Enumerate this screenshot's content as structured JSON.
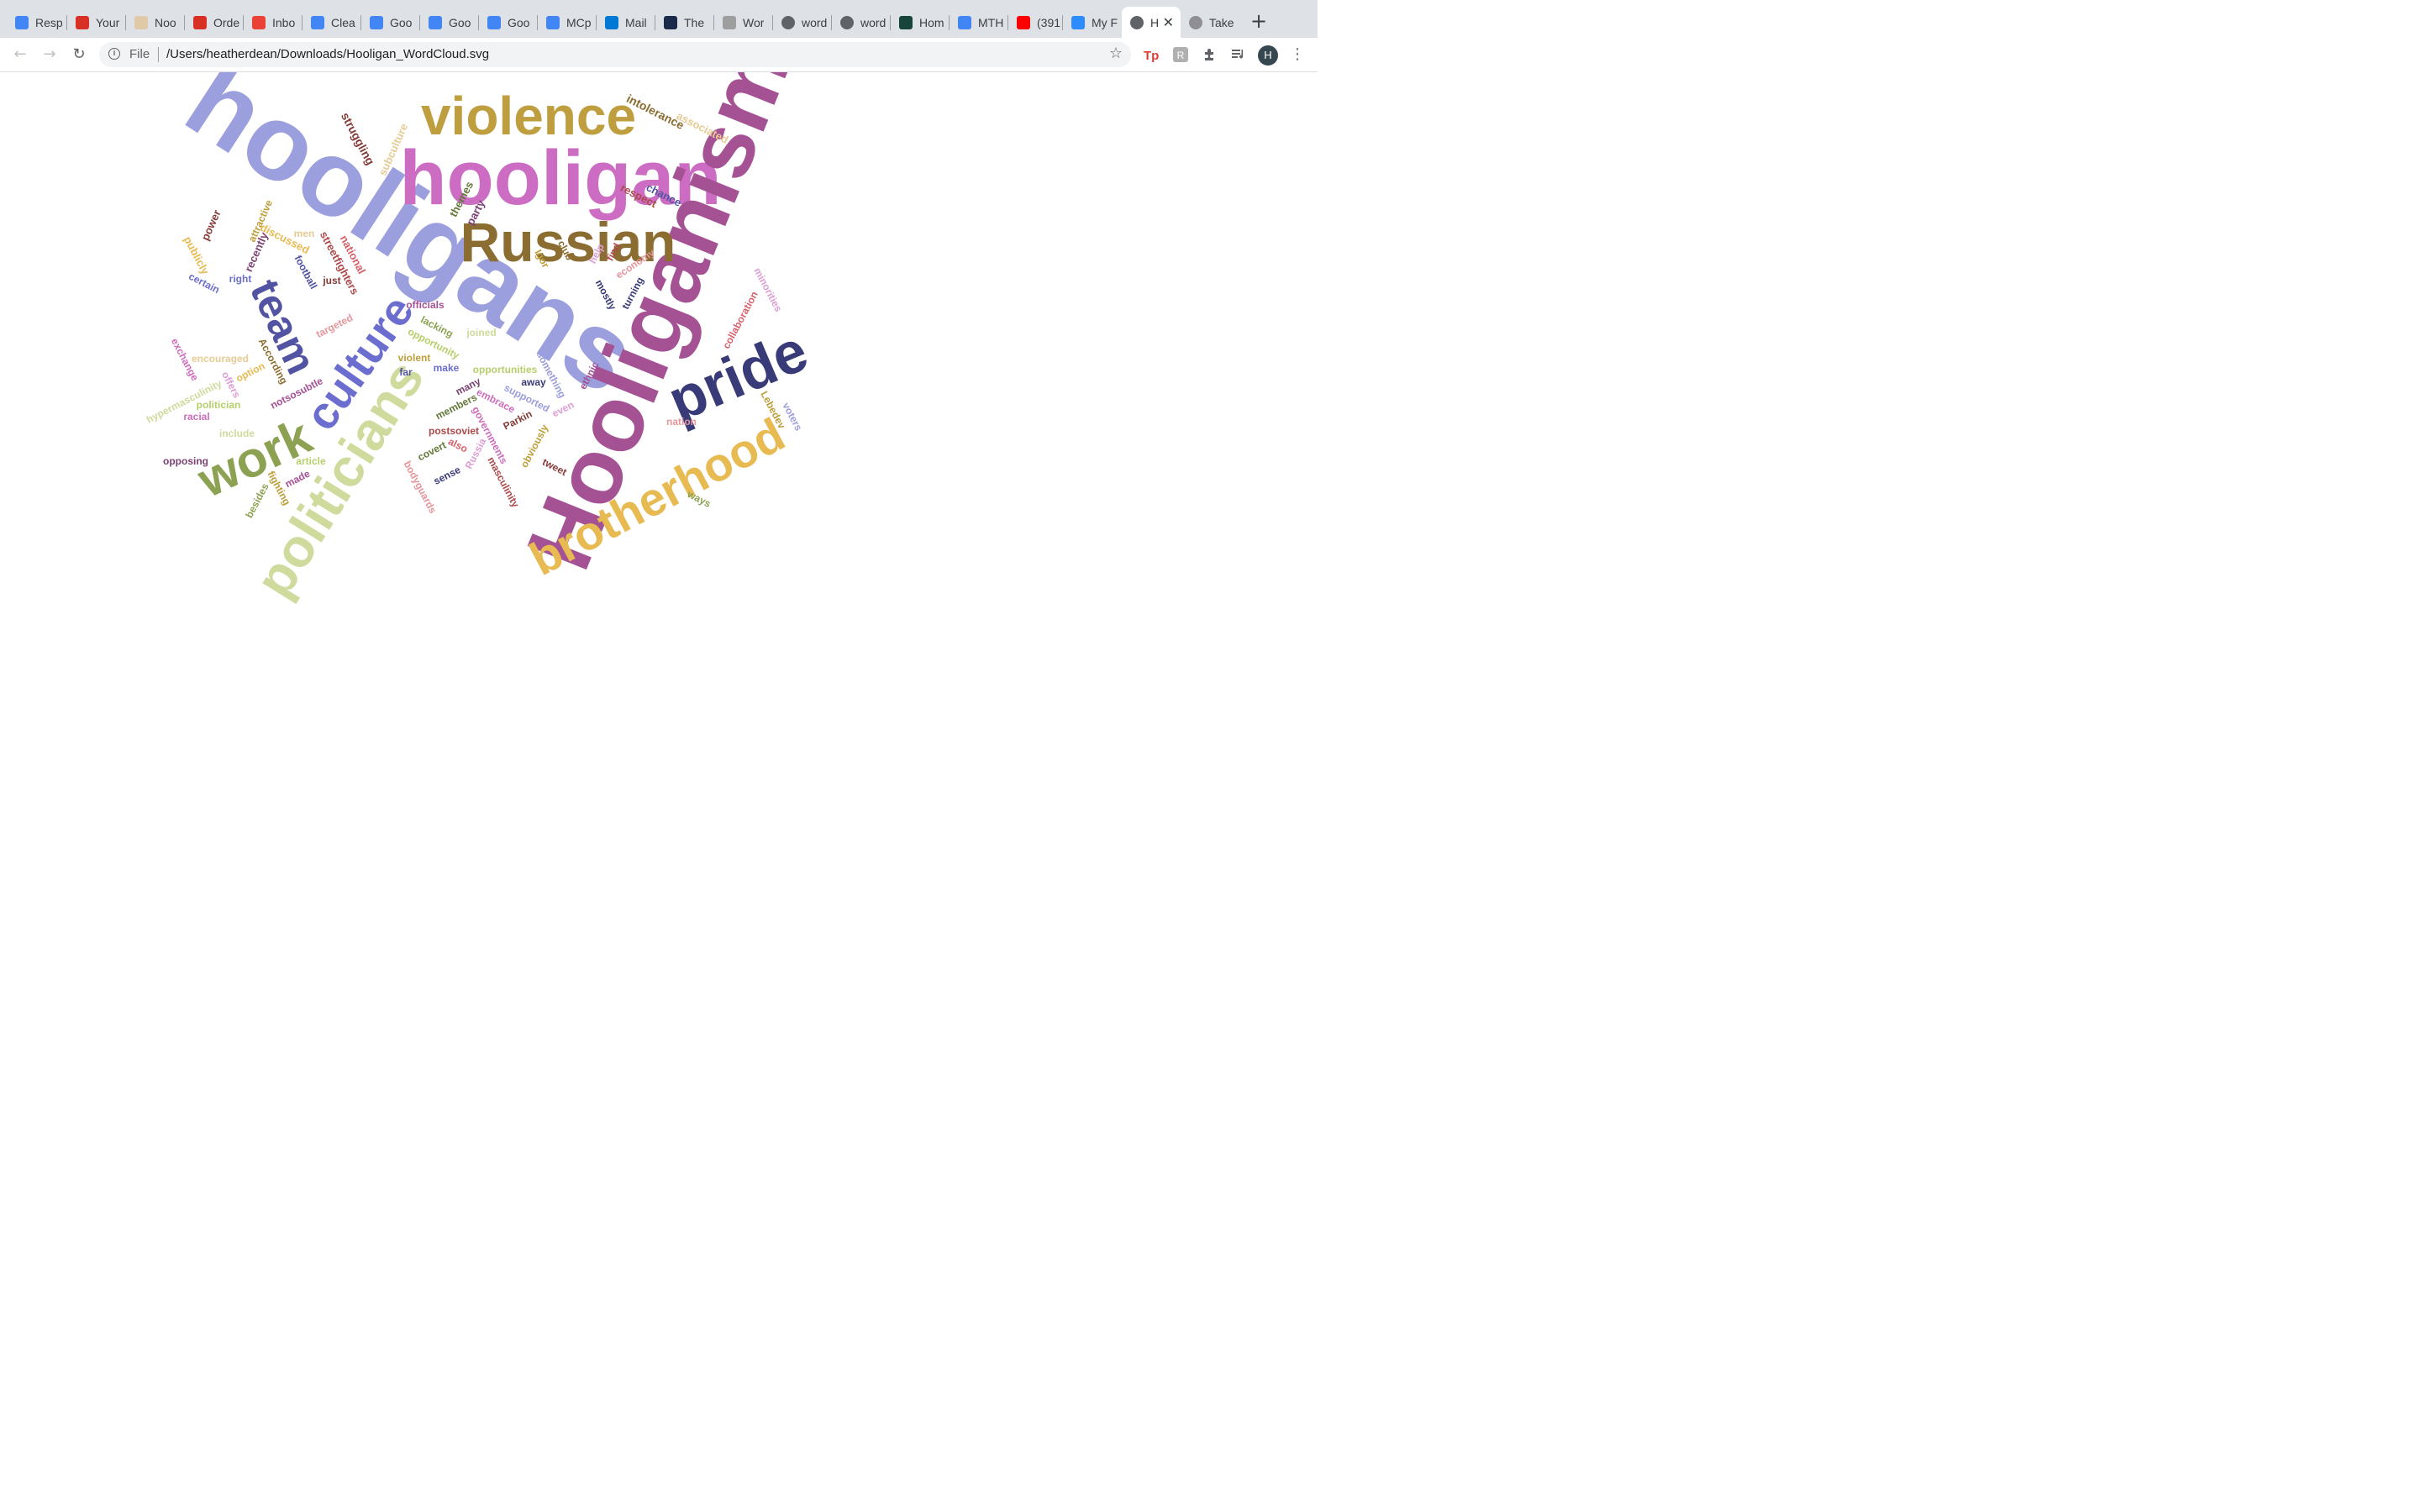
{
  "tabs": [
    {
      "label": "Resp",
      "icon": "google-docs-icon",
      "color": "#4285f4"
    },
    {
      "label": "Your",
      "icon": "red-swirl-icon",
      "color": "#d93025"
    },
    {
      "label": "Noo",
      "icon": "beige-swirl-icon",
      "color": "#e0c9a6"
    },
    {
      "label": "Orde",
      "icon": "red-swirl-icon",
      "color": "#d93025"
    },
    {
      "label": "Inbo",
      "icon": "gmail-icon",
      "color": "#ea4335"
    },
    {
      "label": "Clea",
      "icon": "google-docs-icon",
      "color": "#4285f4"
    },
    {
      "label": "Goo",
      "icon": "google-icon",
      "color": "#4285f4"
    },
    {
      "label": "Goo",
      "icon": "google-icon",
      "color": "#4285f4"
    },
    {
      "label": "Goo",
      "icon": "google-icon",
      "color": "#4285f4"
    },
    {
      "label": "MCp",
      "icon": "google-docs-icon",
      "color": "#4285f4"
    },
    {
      "label": "Mail",
      "icon": "outlook-icon",
      "color": "#0078d4"
    },
    {
      "label": "The",
      "icon": "newspaper-icon",
      "color": "#1a2a4a"
    },
    {
      "label": "Wor",
      "icon": "j-icon",
      "color": "#9e9e9e"
    },
    {
      "label": "word",
      "icon": "globe-icon",
      "color": "#5f6368"
    },
    {
      "label": "word",
      "icon": "globe-icon",
      "color": "#5f6368"
    },
    {
      "label": "Hom",
      "icon": "s-logo-icon",
      "color": "#18453b"
    },
    {
      "label": "MTH",
      "icon": "google-docs-icon",
      "color": "#4285f4"
    },
    {
      "label": "(391",
      "icon": "youtube-icon",
      "color": "#ff0000"
    },
    {
      "label": "My F",
      "icon": "zoom-icon",
      "color": "#2d8cff"
    },
    {
      "label": "H",
      "icon": "globe-icon",
      "color": "#5f6368",
      "active": true
    },
    {
      "label": "Take",
      "icon": "apple-icon",
      "color": "#8e8e93"
    }
  ],
  "address": {
    "scheme": "File",
    "url": "/Users/heatherdean/Downloads/Hooligan_WordCloud.svg"
  },
  "avatar_initial": "H",
  "words": [
    {
      "text": "hooligans",
      "color": "#9b9fdd"
    },
    {
      "text": "hooligan",
      "color": "#cc6cc2"
    },
    {
      "text": "Hooliganism",
      "color": "#a55294"
    },
    {
      "text": "violence",
      "color": "#bf9e40"
    },
    {
      "text": "Russian",
      "color": "#8c6d31"
    },
    {
      "text": "pride",
      "color": "#393b79"
    },
    {
      "text": "brotherhood",
      "color": "#e7ba52"
    },
    {
      "text": "politicians",
      "color": "#cedb9c"
    },
    {
      "text": "work",
      "color": "#8ca252"
    },
    {
      "text": "culture",
      "color": "#6b6ecf"
    },
    {
      "text": "team",
      "color": "#5254a3"
    },
    {
      "text": "intolerance",
      "color": "#8c6d31"
    },
    {
      "text": "associated",
      "color": "#e7cb94"
    },
    {
      "text": "struggling",
      "color": "#843c39"
    },
    {
      "text": "subculture",
      "color": "#e7cb94"
    },
    {
      "text": "themes",
      "color": "#637939"
    },
    {
      "text": "party",
      "color": "#7b4173"
    },
    {
      "text": "respect",
      "color": "#ad494a"
    },
    {
      "text": "chance",
      "color": "#5254a3"
    },
    {
      "text": "power",
      "color": "#843c39"
    },
    {
      "text": "attractive",
      "color": "#bd9e39"
    },
    {
      "text": "men",
      "color": "#e7cb94"
    },
    {
      "text": "discussed",
      "color": "#e7ba52"
    },
    {
      "text": "publicly",
      "color": "#e7ba52"
    },
    {
      "text": "recently",
      "color": "#7b4173"
    },
    {
      "text": "streetfighters",
      "color": "#ad494a"
    },
    {
      "text": "national",
      "color": "#d6616b"
    },
    {
      "text": "club",
      "color": "#8c6d31"
    },
    {
      "text": "Igor",
      "color": "#bd9e39"
    },
    {
      "text": "help",
      "color": "#de9ed6"
    },
    {
      "text": "find",
      "color": "#ad494a"
    },
    {
      "text": "economy",
      "color": "#e7969c"
    },
    {
      "text": "right",
      "color": "#6b6ecf"
    },
    {
      "text": "certain",
      "color": "#6b6ecf"
    },
    {
      "text": "football",
      "color": "#5254a3"
    },
    {
      "text": "just",
      "color": "#843c39"
    },
    {
      "text": "mostly",
      "color": "#393b79"
    },
    {
      "text": "turning",
      "color": "#393b79"
    },
    {
      "text": "minorities",
      "color": "#de9ed6"
    },
    {
      "text": "officials",
      "color": "#a55194"
    },
    {
      "text": "lacking",
      "color": "#8ca252"
    },
    {
      "text": "opportunity",
      "color": "#b5cf6b"
    },
    {
      "text": "joined",
      "color": "#cedb9c"
    },
    {
      "text": "targeted",
      "color": "#e7969c"
    },
    {
      "text": "collaboration",
      "color": "#d6616b"
    },
    {
      "text": "exchange",
      "color": "#ce6dbd"
    },
    {
      "text": "encouraged",
      "color": "#e7cb94"
    },
    {
      "text": "According",
      "color": "#8c6d31"
    },
    {
      "text": "option",
      "color": "#e7ba52"
    },
    {
      "text": "violent",
      "color": "#bd9e39"
    },
    {
      "text": "far",
      "color": "#5254a3"
    },
    {
      "text": "make",
      "color": "#6b6ecf"
    },
    {
      "text": "opportunities",
      "color": "#b5cf6b"
    },
    {
      "text": "something",
      "color": "#9c9ede"
    },
    {
      "text": "away",
      "color": "#393b79"
    },
    {
      "text": "ethnic",
      "color": "#a55194"
    },
    {
      "text": "hypermasculinity",
      "color": "#cedb9c"
    },
    {
      "text": "offers",
      "color": "#de9ed6"
    },
    {
      "text": "notsosubtle",
      "color": "#a55194"
    },
    {
      "text": "many",
      "color": "#7b4173"
    },
    {
      "text": "embrace",
      "color": "#ce6dbd"
    },
    {
      "text": "supported",
      "color": "#9c9ede"
    },
    {
      "text": "even",
      "color": "#de9ed6"
    },
    {
      "text": "Lebedev",
      "color": "#bd9e39"
    },
    {
      "text": "voters",
      "color": "#9c9ede"
    },
    {
      "text": "politician",
      "color": "#b5cf6b"
    },
    {
      "text": "racial",
      "color": "#ce6dbd"
    },
    {
      "text": "members",
      "color": "#637939"
    },
    {
      "text": "Parkin",
      "color": "#843c39"
    },
    {
      "text": "nation",
      "color": "#e7969c"
    },
    {
      "text": "include",
      "color": "#cedb9c"
    },
    {
      "text": "postsoviet",
      "color": "#ad494a"
    },
    {
      "text": "governments",
      "color": "#ce6dbd"
    },
    {
      "text": "obviously",
      "color": "#bd9e39"
    },
    {
      "text": "opposing",
      "color": "#7b4173"
    },
    {
      "text": "article",
      "color": "#b5cf6b"
    },
    {
      "text": "covert",
      "color": "#637939"
    },
    {
      "text": "also",
      "color": "#d6616b"
    },
    {
      "text": "Russia",
      "color": "#de9ed6"
    },
    {
      "text": "tweet",
      "color": "#843c39"
    },
    {
      "text": "fighting",
      "color": "#bd9e39"
    },
    {
      "text": "made",
      "color": "#a55194"
    },
    {
      "text": "sense",
      "color": "#393b79"
    },
    {
      "text": "masculinity",
      "color": "#ad494a"
    },
    {
      "text": "bodyguards",
      "color": "#e7969c"
    },
    {
      "text": "besides",
      "color": "#8ca252"
    },
    {
      "text": "ways",
      "color": "#8ca252"
    }
  ]
}
